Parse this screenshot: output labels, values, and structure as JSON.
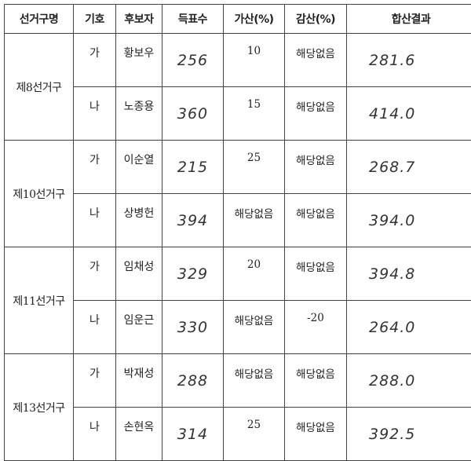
{
  "headers": [
    "선거구명",
    "기호",
    "후보자",
    "득표수",
    "가산(%)",
    "감산(%)",
    "합산결과"
  ],
  "districts": [
    {
      "name": "제8선거구",
      "candidates": [
        {
          "symbol": "가",
          "name": "황보우",
          "votes": "256",
          "bonus": "10",
          "deduction": "해당없음",
          "total": "281.6"
        },
        {
          "symbol": "나",
          "name": "노종용",
          "votes": "360",
          "bonus": "15",
          "deduction": "해당없음",
          "total": "414.0"
        }
      ]
    },
    {
      "name": "제10선거구",
      "candidates": [
        {
          "symbol": "가",
          "name": "이순열",
          "votes": "215",
          "bonus": "25",
          "deduction": "해당없음",
          "total": "268.7"
        },
        {
          "symbol": "나",
          "name": "상병헌",
          "votes": "394",
          "bonus": "해당없음",
          "deduction": "해당없음",
          "total": "394.0"
        }
      ]
    },
    {
      "name": "제11선거구",
      "candidates": [
        {
          "symbol": "가",
          "name": "임채성",
          "votes": "329",
          "bonus": "20",
          "deduction": "해당없음",
          "total": "394.8"
        },
        {
          "symbol": "나",
          "name": "임운근",
          "votes": "330",
          "bonus": "해당없음",
          "deduction": "-20",
          "total": "264.0"
        }
      ]
    },
    {
      "name": "제13선거구",
      "candidates": [
        {
          "symbol": "가",
          "name": "박재성",
          "votes": "288",
          "bonus": "해당없음",
          "deduction": "해당없음",
          "total": "288.0"
        },
        {
          "symbol": "나",
          "name": "손현옥",
          "votes": "314",
          "bonus": "25",
          "deduction": "해당없음",
          "total": "392.5"
        }
      ]
    }
  ]
}
